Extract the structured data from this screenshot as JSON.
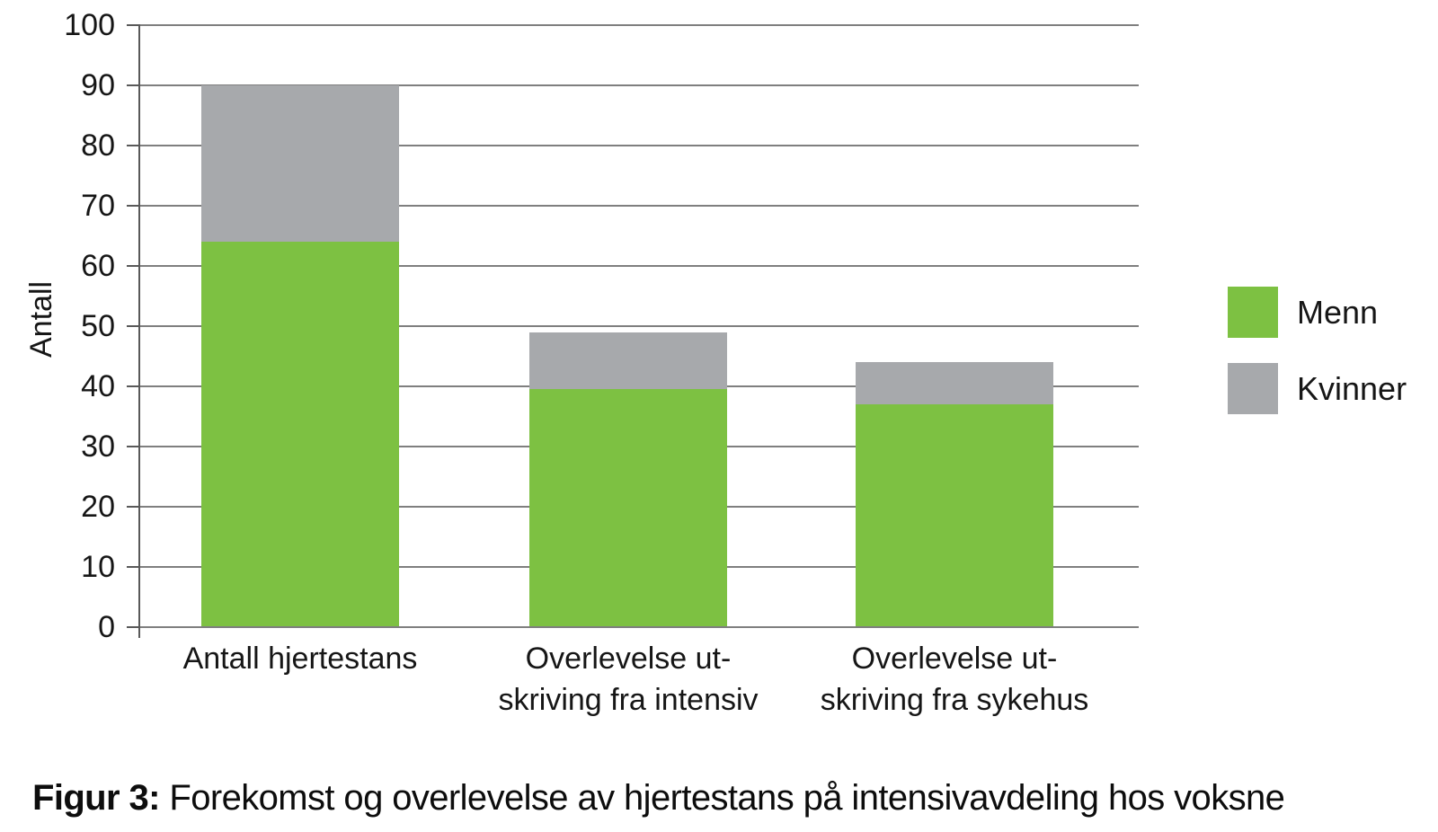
{
  "figure": {
    "caption_label": "Figur 3:",
    "caption_text": " Forekomst og overlevelse av hjertestans på intensivavdeling hos voksne"
  },
  "chart_data": {
    "type": "bar",
    "stacked": true,
    "title": "",
    "xlabel": "",
    "ylabel": "Antall",
    "ylim": [
      0,
      100
    ],
    "ytick_step": 10,
    "grid": true,
    "legend_position": "right",
    "categories": [
      "Antall hjertestans",
      "Overlevelse ut-\nskriving fra intensiv",
      "Overlevelse ut-\nskriving fra sykehus"
    ],
    "series": [
      {
        "name": "Menn",
        "color": "#7dc142",
        "values": [
          64,
          39.5,
          37
        ]
      },
      {
        "name": "Kvinner",
        "color": "#a7a9ac",
        "values": [
          26,
          9.5,
          7
        ]
      }
    ],
    "totals": [
      90,
      49,
      44
    ]
  }
}
